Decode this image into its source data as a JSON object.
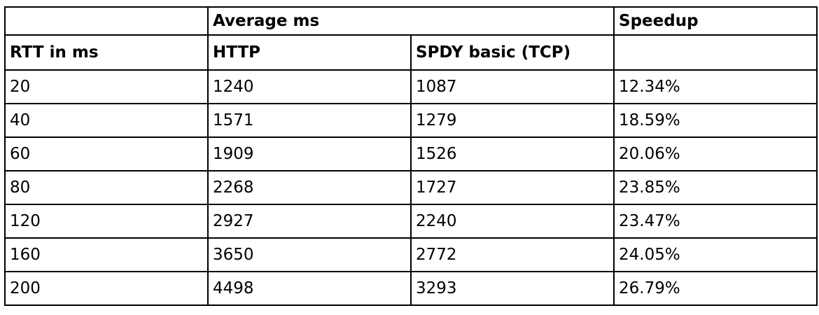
{
  "table": {
    "group_header": {
      "average": "Average ms",
      "speedup": "Speedup"
    },
    "columns": [
      "RTT in ms",
      "HTTP",
      "SPDY basic (TCP)"
    ],
    "rows": [
      [
        "20",
        "1240",
        "1087",
        "12.34%"
      ],
      [
        "40",
        "1571",
        "1279",
        "18.59%"
      ],
      [
        "60",
        "1909",
        "1526",
        "20.06%"
      ],
      [
        "80",
        "2268",
        "1727",
        "23.85%"
      ],
      [
        "120",
        "2927",
        "2240",
        "23.47%"
      ],
      [
        "160",
        "3650",
        "2772",
        "24.05%"
      ],
      [
        "200",
        "4498",
        "3293",
        "26.79%"
      ]
    ]
  }
}
